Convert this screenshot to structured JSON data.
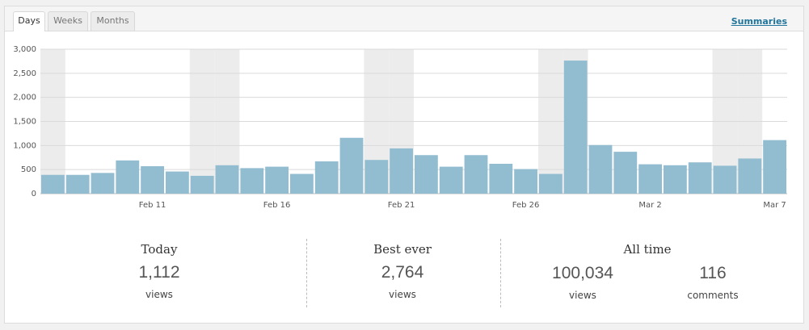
{
  "tabs": [
    "Days",
    "Weeks",
    "Months"
  ],
  "summaries_link": "Summaries",
  "chart_data": {
    "type": "bar",
    "categories": [
      null,
      null,
      null,
      null,
      "Feb 11",
      null,
      null,
      null,
      null,
      "Feb 16",
      null,
      null,
      null,
      null,
      "Feb 21",
      null,
      null,
      null,
      null,
      "Feb 26",
      null,
      null,
      null,
      null,
      "Mar 2",
      null,
      null,
      null,
      null,
      "Mar 7"
    ],
    "values": [
      390,
      390,
      430,
      690,
      570,
      460,
      370,
      590,
      530,
      560,
      410,
      670,
      1160,
      700,
      940,
      800,
      560,
      800,
      620,
      510,
      410,
      2764,
      1010,
      870,
      610,
      590,
      650,
      580,
      730,
      1112
    ],
    "color": "#92bcd0",
    "ylim": [
      0,
      3000
    ],
    "yticks": [
      0,
      500,
      {
        "value": 1000,
        "label": "1,000"
      },
      {
        "value": 1500,
        "label": "1,500"
      },
      {
        "value": 2000,
        "label": "2,000"
      },
      {
        "value": 2500,
        "label": "2,500"
      },
      {
        "value": 3000,
        "label": "3,000"
      }
    ],
    "grid": true
  },
  "stats": {
    "today": {
      "title": "Today",
      "value": "1,112",
      "unit": "views"
    },
    "best": {
      "title": "Best ever",
      "value": "2,764",
      "unit": "views"
    },
    "all_time": {
      "title": "All time",
      "views": "100,034",
      "views_unit": "views",
      "comments": "116",
      "comments_unit": "comments"
    }
  }
}
